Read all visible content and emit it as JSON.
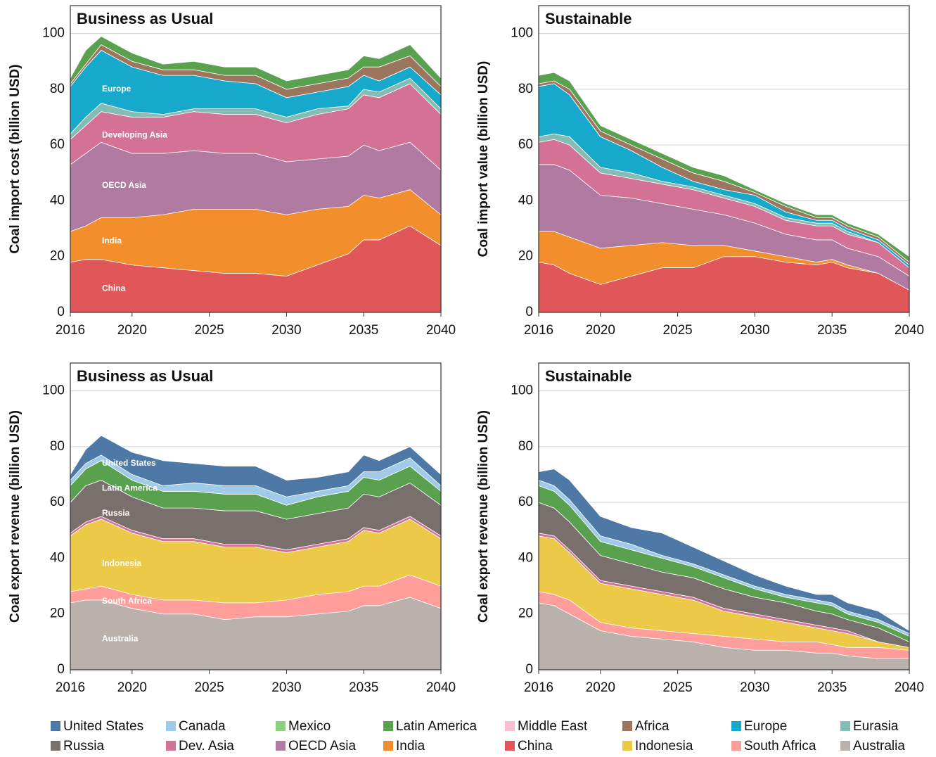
{
  "chart_data": [
    {
      "type": "area",
      "stacked": true,
      "title": "Business as Usual",
      "ylabel": "Coal import cost (billion USD)",
      "x": [
        2016,
        2017,
        2018,
        2020,
        2022,
        2024,
        2026,
        2028,
        2030,
        2032,
        2034,
        2035,
        2036,
        2038,
        2040
      ],
      "xlim": [
        2016,
        2040
      ],
      "xticks": [
        2016,
        2020,
        2025,
        2030,
        2035,
        2040
      ],
      "ylim": [
        0,
        110
      ],
      "yticks": [
        0,
        20,
        40,
        60,
        80,
        100
      ],
      "grid": true,
      "series": [
        {
          "label": "China",
          "color": "#e15759",
          "values": [
            18,
            19,
            19,
            17,
            16,
            15,
            14,
            14,
            13,
            17,
            21,
            26,
            26,
            31,
            24
          ]
        },
        {
          "label": "India",
          "color": "#f28e2b",
          "values": [
            11,
            12,
            15,
            17,
            19,
            22,
            23,
            23,
            22,
            20,
            17,
            16,
            15,
            13,
            11
          ]
        },
        {
          "label": "OECD Asia",
          "color": "#b07aa1",
          "values": [
            24,
            26,
            27,
            23,
            22,
            21,
            20,
            20,
            19,
            18,
            18,
            18,
            17,
            17,
            16
          ]
        },
        {
          "label": "Developing Asia",
          "color": "#d37295",
          "values": [
            9,
            10,
            11,
            13,
            13,
            14,
            14,
            14,
            14,
            16,
            17,
            18,
            19,
            21,
            20
          ]
        },
        {
          "color": "#86bcb6",
          "values": [
            2,
            3,
            3,
            2,
            1,
            1,
            2,
            2,
            2,
            2,
            1,
            2,
            2,
            2,
            2
          ]
        },
        {
          "label": "Europe",
          "color": "#17a9cc",
          "values": [
            17,
            18,
            19,
            16,
            14,
            12,
            10,
            9,
            7,
            6,
            7,
            5,
            4,
            4,
            5
          ]
        },
        {
          "color": "#9c755f",
          "values": [
            1,
            1,
            2,
            2,
            2,
            2,
            2,
            3,
            3,
            3,
            3,
            3,
            5,
            4,
            3
          ]
        },
        {
          "color": "#59a14f",
          "values": [
            2,
            5,
            3,
            3,
            2,
            3,
            3,
            3,
            3,
            3,
            3,
            4,
            3,
            4,
            3
          ]
        }
      ]
    },
    {
      "type": "area",
      "stacked": true,
      "title": "Sustainable",
      "ylabel": "Coal import value (billion USD)",
      "x": [
        2016,
        2017,
        2018,
        2020,
        2022,
        2024,
        2026,
        2028,
        2030,
        2032,
        2034,
        2035,
        2036,
        2038,
        2040
      ],
      "xlim": [
        2016,
        2040
      ],
      "xticks": [
        2016,
        2020,
        2025,
        2030,
        2035,
        2040
      ],
      "ylim": [
        0,
        110
      ],
      "yticks": [
        0,
        20,
        40,
        60,
        80,
        100
      ],
      "grid": true,
      "series": [
        {
          "color": "#e15759",
          "values": [
            18,
            17,
            14,
            10,
            13,
            16,
            16,
            20,
            20,
            18,
            17,
            18,
            16,
            14,
            8
          ]
        },
        {
          "color": "#f28e2b",
          "values": [
            11,
            12,
            13,
            13,
            11,
            9,
            8,
            4,
            2,
            2,
            1,
            1,
            1,
            0,
            0
          ]
        },
        {
          "color": "#b07aa1",
          "values": [
            24,
            24,
            24,
            19,
            17,
            14,
            13,
            11,
            10,
            8,
            8,
            7,
            6,
            6,
            5
          ]
        },
        {
          "color": "#d37295",
          "values": [
            8,
            9,
            9,
            8,
            7,
            7,
            7,
            6,
            6,
            5,
            5,
            5,
            5,
            5,
            3
          ]
        },
        {
          "color": "#86bcb6",
          "values": [
            2,
            2,
            3,
            2,
            2,
            1,
            1,
            1,
            1,
            1,
            1,
            1,
            1,
            0,
            0
          ]
        },
        {
          "color": "#17a9cc",
          "values": [
            18,
            18,
            15,
            11,
            8,
            5,
            2,
            2,
            3,
            2,
            1,
            1,
            1,
            1,
            1
          ]
        },
        {
          "color": "#9c755f",
          "values": [
            1,
            1,
            2,
            2,
            2,
            3,
            3,
            3,
            1,
            2,
            1,
            1,
            1,
            1,
            1
          ]
        },
        {
          "color": "#59a14f",
          "values": [
            3,
            3,
            3,
            2,
            2,
            2,
            2,
            2,
            1,
            1,
            1,
            1,
            1,
            1,
            2
          ]
        }
      ]
    },
    {
      "type": "area",
      "stacked": true,
      "title": "Business as Usual",
      "ylabel": "Coal export revenue (billion USD)",
      "x": [
        2016,
        2017,
        2018,
        2020,
        2022,
        2024,
        2026,
        2028,
        2030,
        2032,
        2034,
        2035,
        2036,
        2038,
        2040
      ],
      "xlim": [
        2016,
        2040
      ],
      "xticks": [
        2016,
        2020,
        2025,
        2030,
        2035,
        2040
      ],
      "ylim": [
        0,
        110
      ],
      "yticks": [
        0,
        20,
        40,
        60,
        80,
        100
      ],
      "grid": true,
      "series": [
        {
          "label": "Australia",
          "color": "#bab0ac",
          "values": [
            24,
            25,
            25,
            22,
            20,
            20,
            18,
            19,
            19,
            20,
            21,
            23,
            23,
            26,
            22
          ]
        },
        {
          "label": "South Africa",
          "color": "#ff9d9a",
          "values": [
            4,
            4,
            5,
            5,
            5,
            5,
            6,
            5,
            6,
            7,
            7,
            7,
            7,
            8,
            8
          ]
        },
        {
          "label": "Indonesia",
          "color": "#edc948",
          "values": [
            20,
            23,
            24,
            22,
            21,
            21,
            20,
            20,
            17,
            17,
            18,
            20,
            19,
            20,
            17
          ]
        },
        {
          "color": "#d37295",
          "values": [
            1,
            1,
            1,
            1,
            1,
            1,
            1,
            1,
            1,
            1,
            1,
            1,
            1,
            1,
            1
          ]
        },
        {
          "label": "Russia",
          "color": "#79706e",
          "values": [
            11,
            13,
            13,
            12,
            11,
            11,
            12,
            12,
            11,
            11,
            11,
            12,
            12,
            12,
            11
          ]
        },
        {
          "label": "Latin America",
          "color": "#59a14f",
          "values": [
            6,
            6,
            7,
            6,
            6,
            6,
            6,
            6,
            5,
            6,
            6,
            6,
            6,
            6,
            5
          ]
        },
        {
          "color": "#a0cbe8",
          "values": [
            2,
            2,
            2,
            2,
            2,
            3,
            3,
            3,
            3,
            2,
            2,
            2,
            3,
            3,
            2
          ]
        },
        {
          "label": "United States",
          "color": "#4e79a7",
          "values": [
            2,
            5,
            7,
            8,
            9,
            7,
            7,
            7,
            6,
            5,
            5,
            6,
            4,
            4,
            4
          ]
        }
      ]
    },
    {
      "type": "area",
      "stacked": true,
      "title": "Sustainable",
      "ylabel": "Coal export revenue (billion USD)",
      "x": [
        2016,
        2017,
        2018,
        2020,
        2022,
        2024,
        2026,
        2028,
        2030,
        2032,
        2034,
        2035,
        2036,
        2038,
        2040
      ],
      "xlim": [
        2016,
        2040
      ],
      "xticks": [
        2016,
        2020,
        2025,
        2030,
        2035,
        2040
      ],
      "ylim": [
        0,
        110
      ],
      "yticks": [
        0,
        20,
        40,
        60,
        80,
        100
      ],
      "grid": true,
      "series": [
        {
          "color": "#bab0ac",
          "values": [
            24,
            23,
            20,
            14,
            12,
            11,
            10,
            8,
            7,
            7,
            6,
            6,
            5,
            4,
            4
          ]
        },
        {
          "color": "#ff9d9a",
          "values": [
            4,
            4,
            5,
            3,
            3,
            3,
            3,
            4,
            4,
            3,
            4,
            3,
            3,
            4,
            3
          ]
        },
        {
          "color": "#edc948",
          "values": [
            20,
            20,
            17,
            14,
            14,
            13,
            12,
            9,
            8,
            7,
            5,
            5,
            5,
            2,
            1
          ]
        },
        {
          "color": "#d37295",
          "values": [
            1,
            1,
            1,
            1,
            1,
            1,
            1,
            1,
            1,
            1,
            1,
            1,
            1,
            0,
            0
          ]
        },
        {
          "color": "#79706e",
          "values": [
            11,
            10,
            10,
            9,
            8,
            7,
            7,
            7,
            6,
            6,
            5,
            5,
            4,
            5,
            2
          ]
        },
        {
          "color": "#59a14f",
          "values": [
            6,
            6,
            6,
            5,
            5,
            5,
            4,
            4,
            3,
            2,
            3,
            3,
            2,
            2,
            2
          ]
        },
        {
          "color": "#a0cbe8",
          "values": [
            2,
            2,
            2,
            2,
            2,
            1,
            1,
            1,
            1,
            1,
            1,
            1,
            1,
            1,
            1
          ]
        },
        {
          "color": "#4e79a7",
          "values": [
            3,
            6,
            7,
            7,
            6,
            8,
            6,
            5,
            4,
            3,
            2,
            3,
            3,
            3,
            1
          ]
        }
      ]
    }
  ],
  "legend": [
    {
      "name": "United States",
      "color": "#4e79a7"
    },
    {
      "name": "Canada",
      "color": "#a0cbe8"
    },
    {
      "name": "Mexico",
      "color": "#8cd17d"
    },
    {
      "name": "Latin America",
      "color": "#59a14f"
    },
    {
      "name": "Middle East",
      "color": "#fabfd2"
    },
    {
      "name": "Africa",
      "color": "#9c755f"
    },
    {
      "name": "Europe",
      "color": "#17a9cc"
    },
    {
      "name": "Eurasia",
      "color": "#86bcb6"
    },
    {
      "name": "Russia",
      "color": "#79706e"
    },
    {
      "name": "Dev. Asia",
      "color": "#d37295"
    },
    {
      "name": "OECD Asia",
      "color": "#b07aa1"
    },
    {
      "name": "India",
      "color": "#f28e2b"
    },
    {
      "name": "China",
      "color": "#e15759"
    },
    {
      "name": "Indonesia",
      "color": "#edc948"
    },
    {
      "name": "South Africa",
      "color": "#ff9d9a"
    },
    {
      "name": "Australia",
      "color": "#bab0ac"
    }
  ]
}
